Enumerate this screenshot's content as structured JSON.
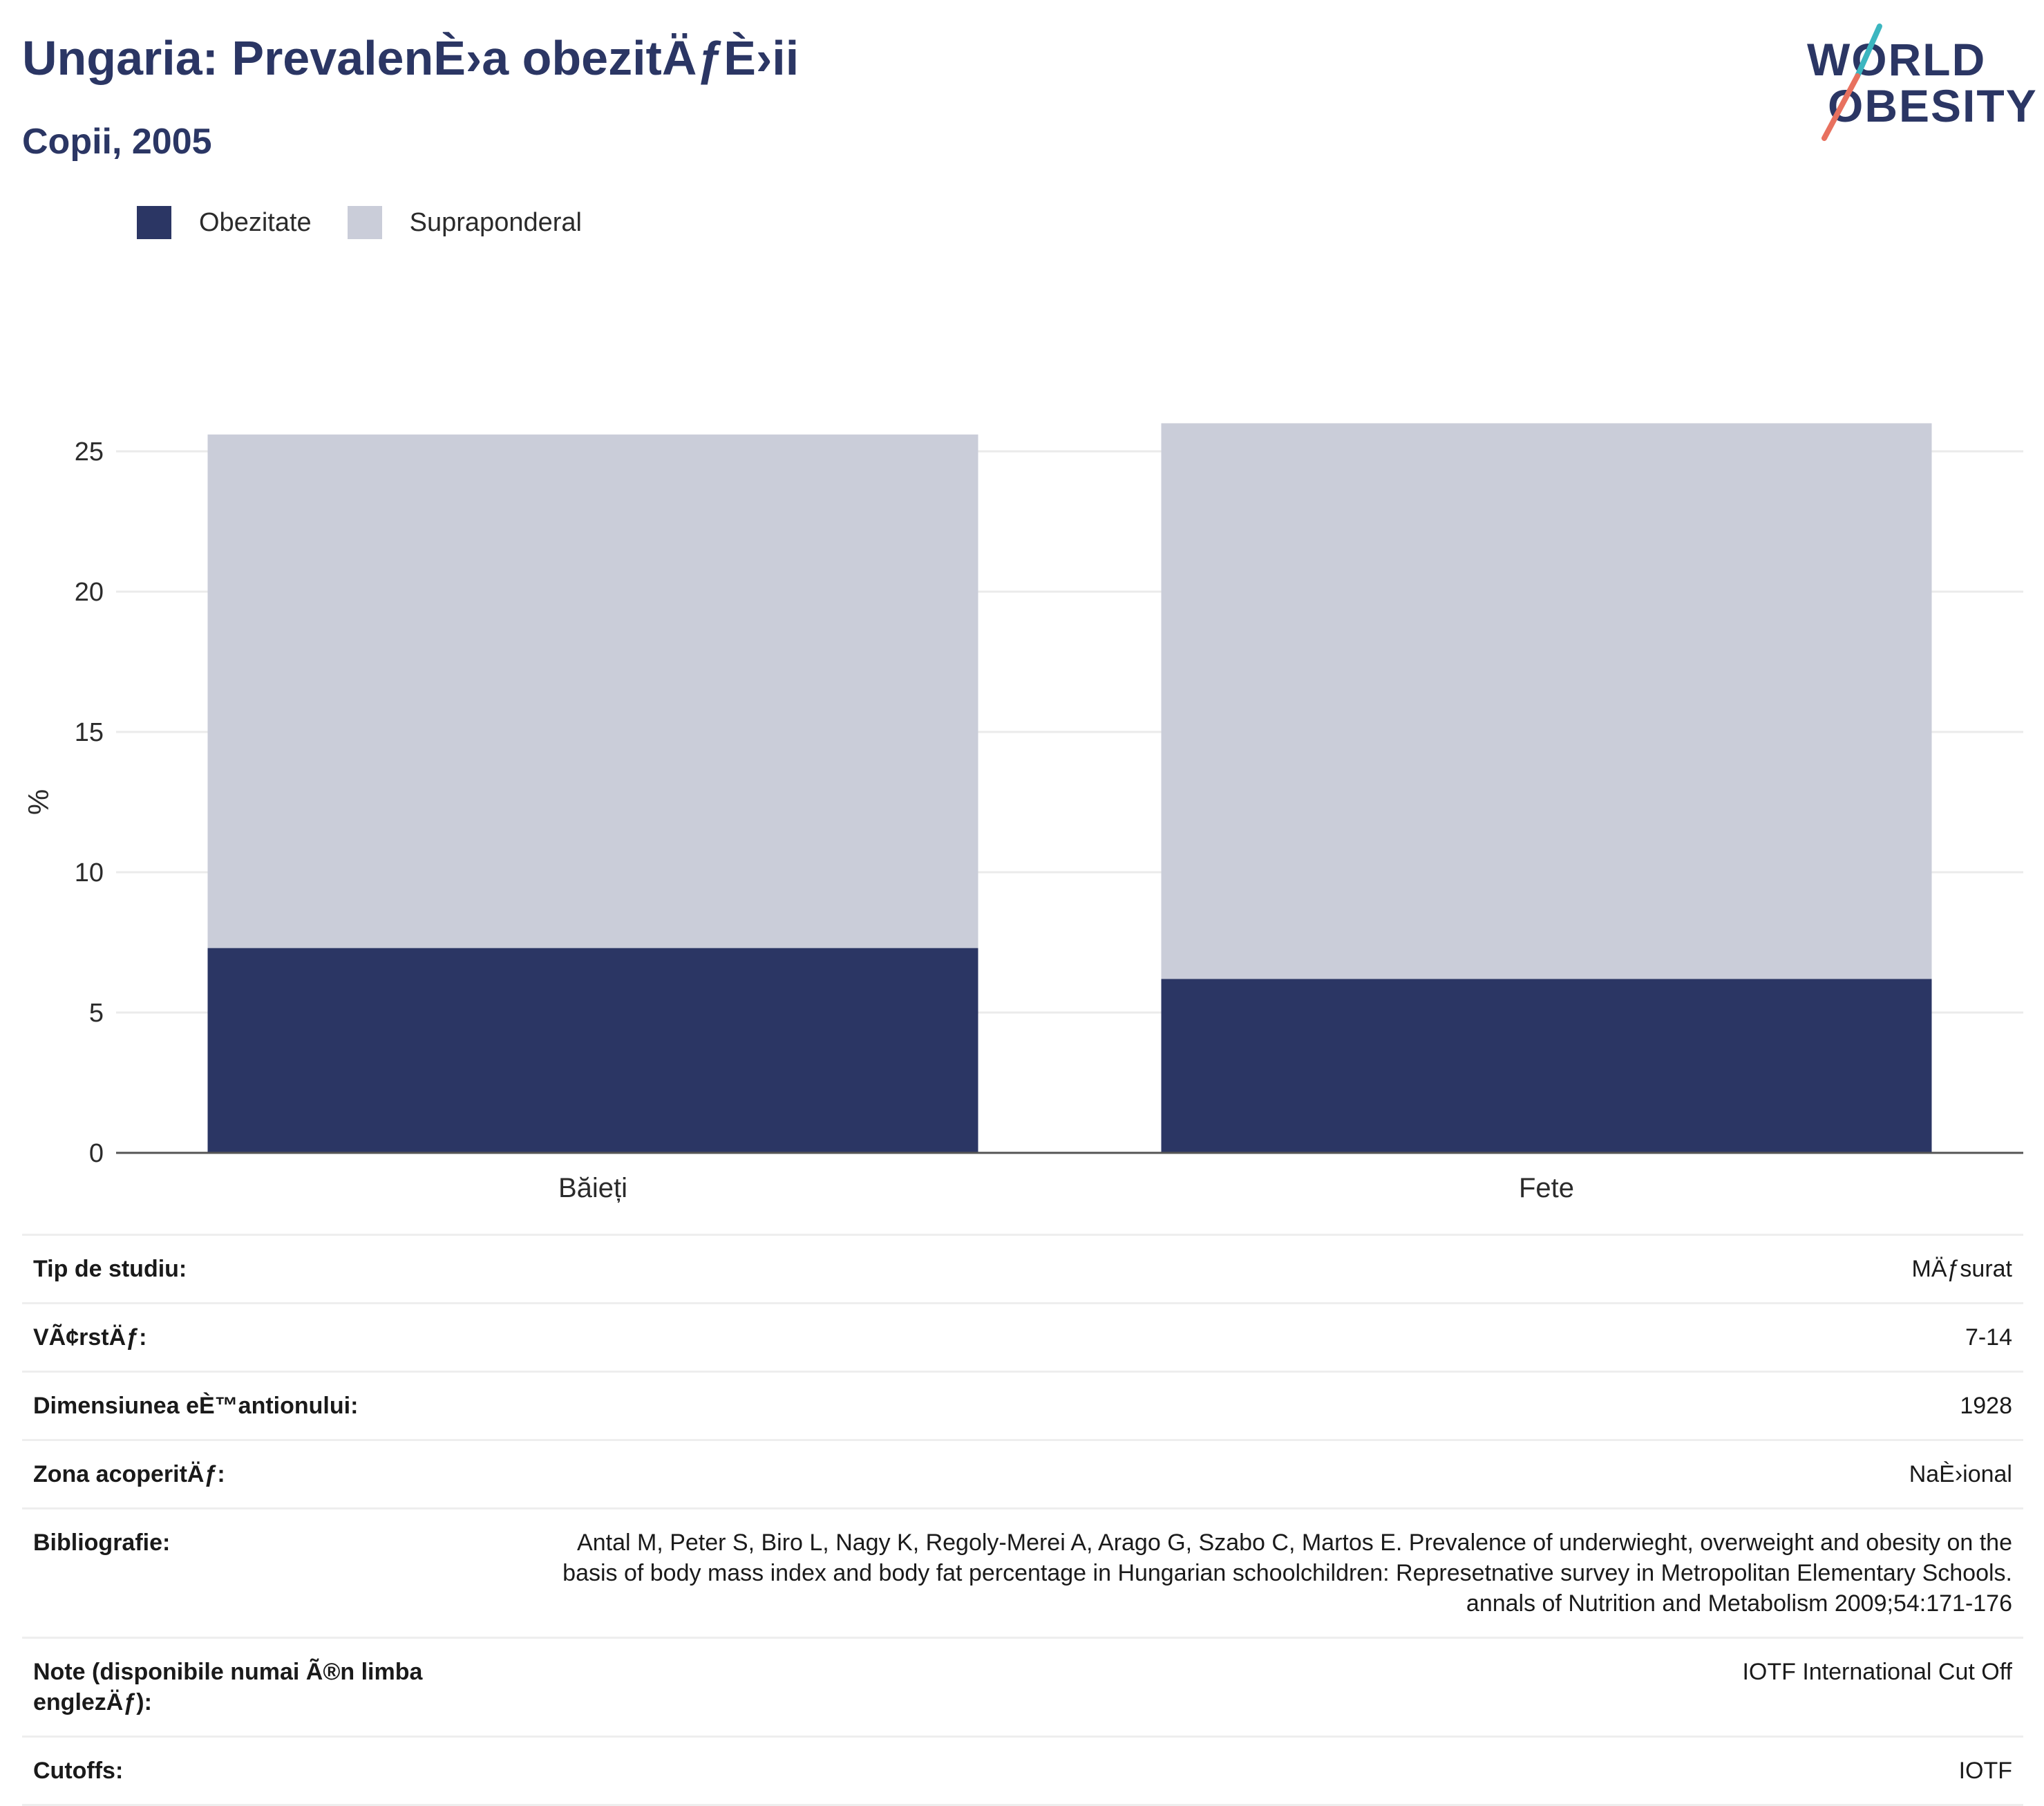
{
  "header": {
    "title": "Ungaria: PrevalenÈ›a obezitÄƒÈ›ii",
    "subtitle": "Copii, 2005"
  },
  "logo": {
    "line1": "WORLD",
    "line2": "OBESITY",
    "colors": {
      "text": "#2b3664",
      "slash_top": "#3cb6c0",
      "slash_bottom": "#e8715f"
    }
  },
  "legend": {
    "items": [
      {
        "label": "Obezitate",
        "color": "#2b3664"
      },
      {
        "label": "Supraponderal",
        "color": "#cacce3"
      }
    ]
  },
  "chart_data": {
    "type": "bar",
    "stacked": true,
    "categories": [
      "Băieți",
      "Fete"
    ],
    "series": [
      {
        "name": "Obezitate",
        "color": "#2b3664",
        "values": [
          7.3,
          6.2
        ]
      },
      {
        "name": "Supraponderal",
        "color": "#cacdd9",
        "values": [
          18.3,
          19.8
        ]
      }
    ],
    "ylabel": "%",
    "ylim": [
      0,
      26
    ],
    "yticks": [
      0,
      5,
      10,
      15,
      20,
      25
    ],
    "grid": true,
    "legend_position": "top-left"
  },
  "details": {
    "rows": [
      {
        "label": "Tip de studiu:",
        "value": "MÄƒsurat"
      },
      {
        "label": "VÃ¢rstÄƒ:",
        "value": "7-14"
      },
      {
        "label": "Dimensiunea eÈ™antionului:",
        "value": "1928"
      },
      {
        "label": "Zona acoperitÄƒ:",
        "value": "NaÈ›ional"
      },
      {
        "label": "Bibliografie:",
        "value": "Antal M, Peter S, Biro L, Nagy K, Regoly-Merei A, Arago G, Szabo C, Martos E. Prevalence of underwieght, overweight and obesity on the basis of body mass index and body fat percentage in Hungarian schoolchildren: Represetnative survey in Metropolitan Elementary Schools. annals of Nutrition and Metabolism 2009;54:171-176"
      },
      {
        "label": "Note (disponibile numai Ã®n limba englezÄƒ):",
        "value": "IOTF International Cut Off"
      },
      {
        "label": "Cutoffs:",
        "value": "IOTF"
      }
    ]
  }
}
